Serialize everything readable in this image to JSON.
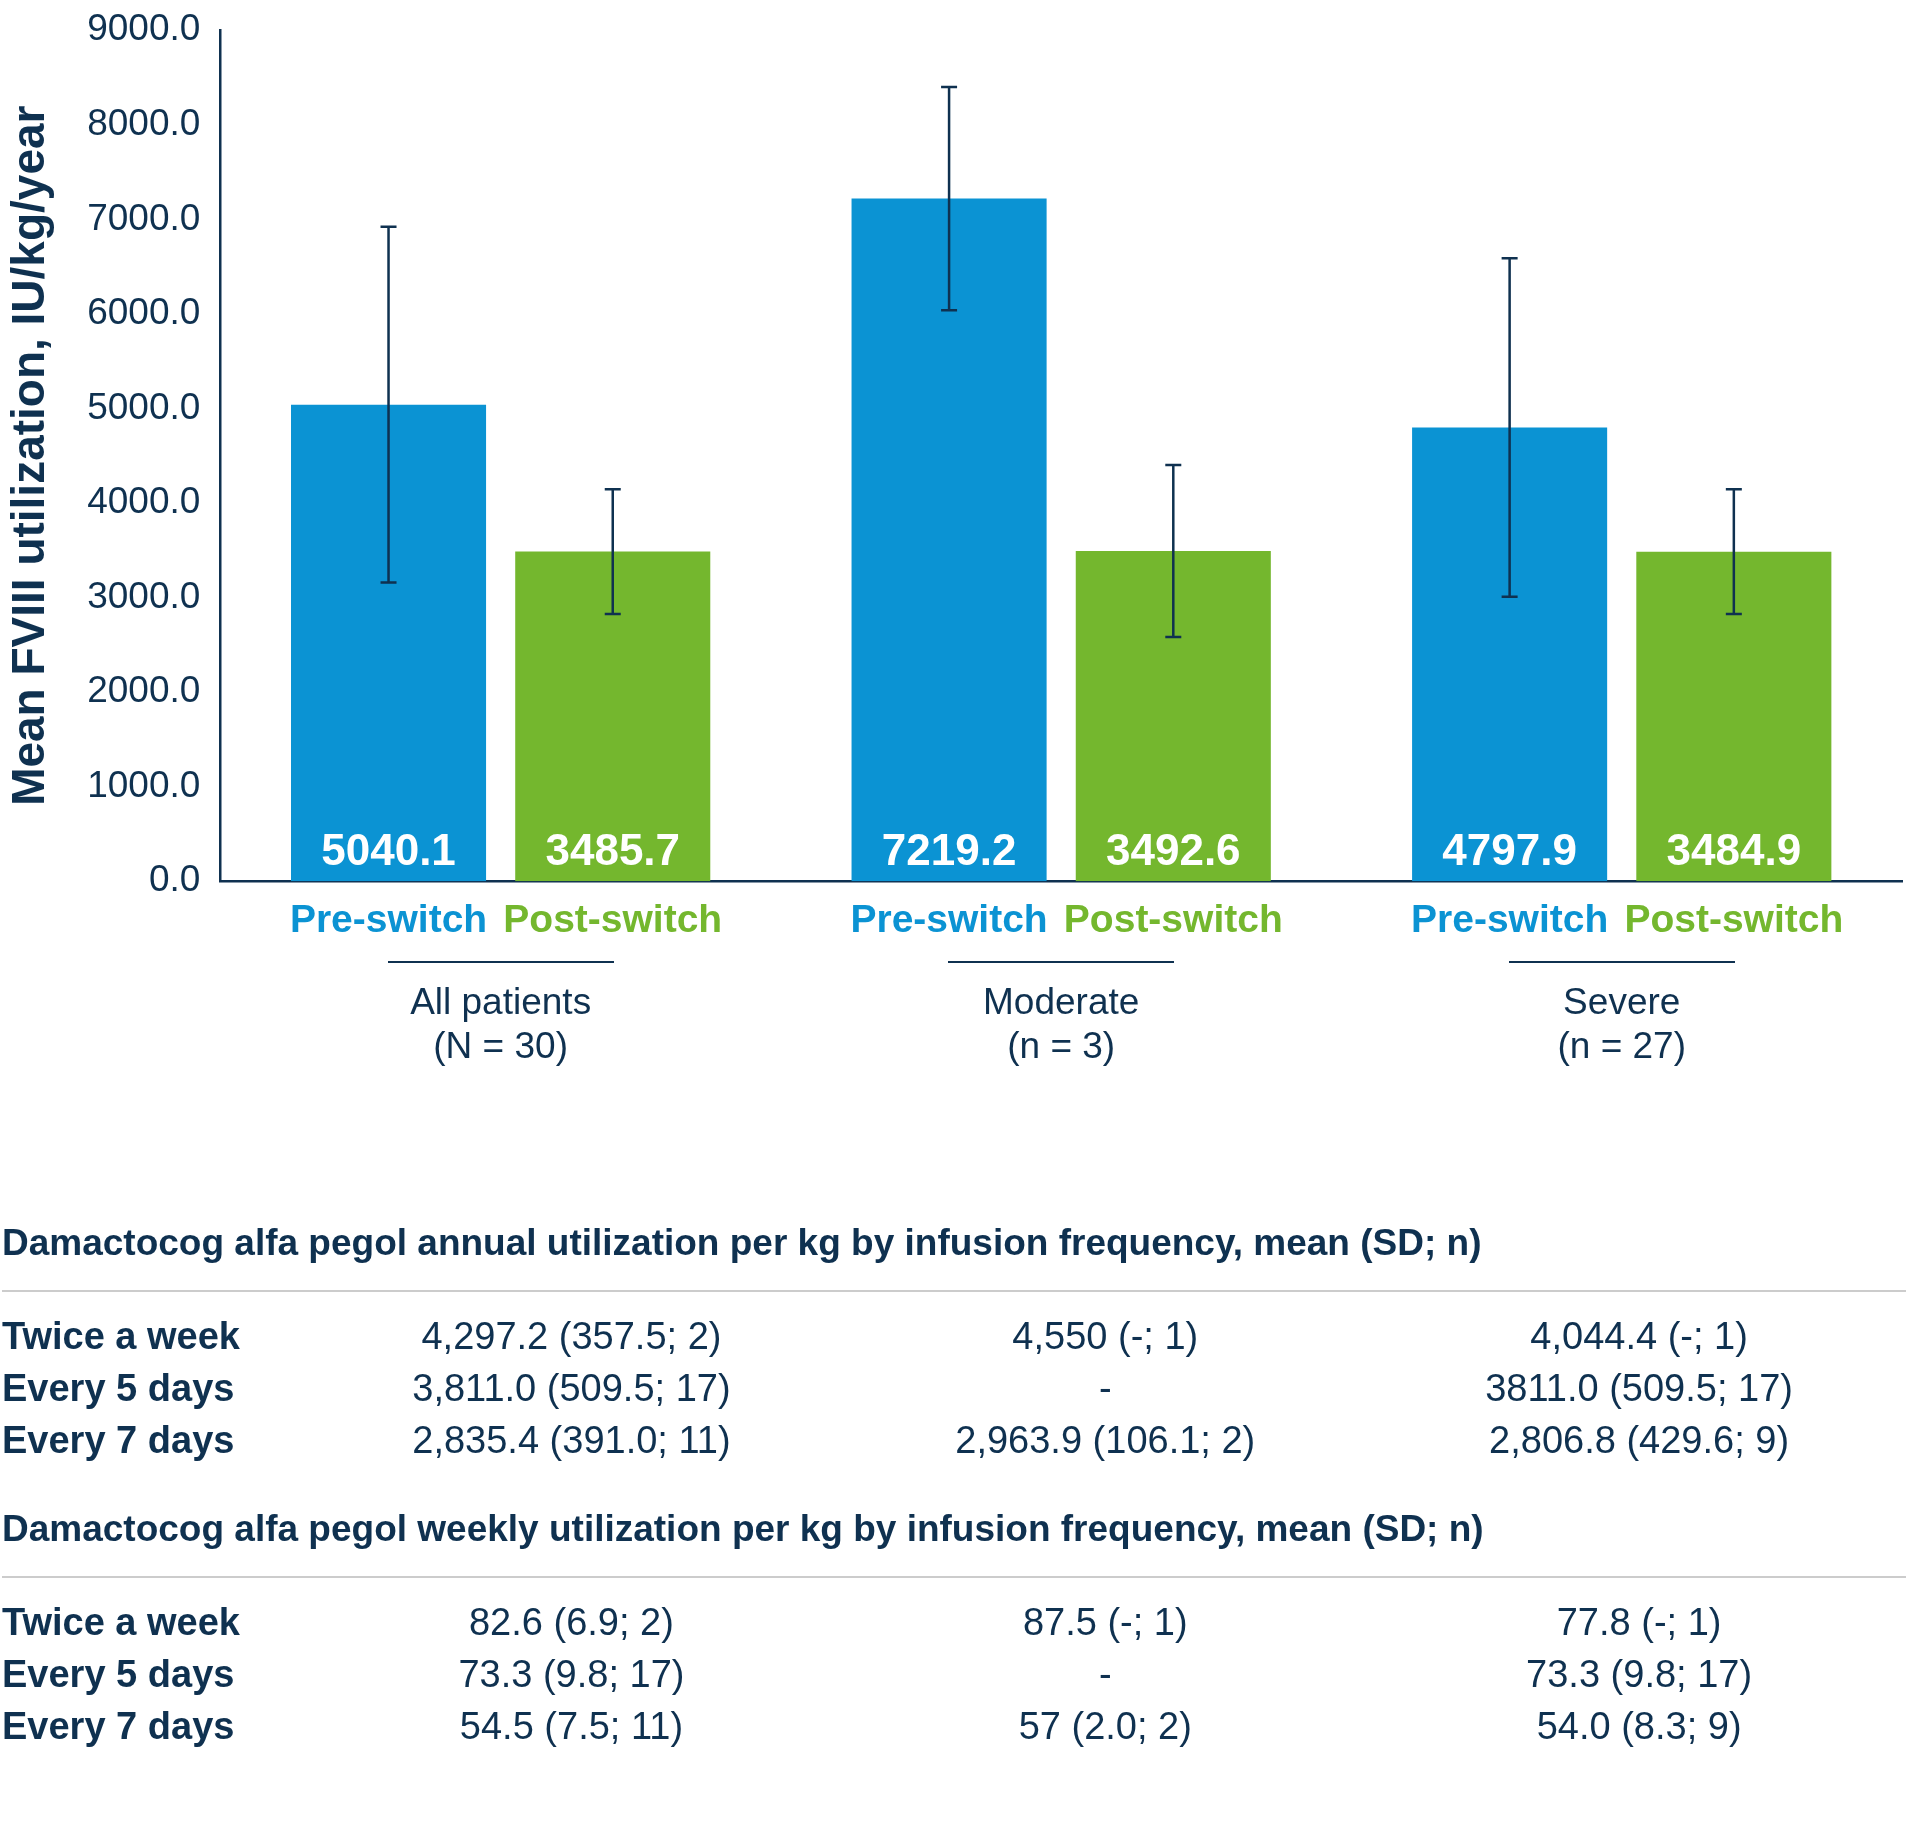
{
  "chart_data": {
    "type": "bar",
    "ylabel": "Mean FVIII utilization, IU/kg/year",
    "categories": [
      "All patients\n(N = 30)",
      "Moderate\n(n = 3)",
      "Severe\n(n = 27)"
    ],
    "series": [
      {
        "name": "Pre-switch",
        "color": "#0b93d3",
        "values": [
          5040.1,
          7219.2,
          4797.9
        ],
        "errors": [
          1880,
          1180,
          1790
        ]
      },
      {
        "name": "Post-switch",
        "color": "#74b72e",
        "values": [
          3485.7,
          3492.6,
          3484.9
        ],
        "errors": [
          660,
          910,
          660
        ]
      }
    ],
    "ylim": [
      0,
      9000
    ],
    "yticks": [
      {
        "value": 0,
        "label": "0.0"
      },
      {
        "value": 1000,
        "label": "1000.0"
      },
      {
        "value": 2000,
        "label": "2000.0"
      },
      {
        "value": 3000,
        "label": "3000.0"
      },
      {
        "value": 4000,
        "label": "4000.0"
      },
      {
        "value": 5000,
        "label": "5000.0"
      },
      {
        "value": 6000,
        "label": "6000.0"
      },
      {
        "value": 7000,
        "label": "7000.0"
      },
      {
        "value": 8000,
        "label": "8000.0"
      },
      {
        "value": 9000,
        "label": "9000.0"
      }
    ],
    "grid": false,
    "legend": false,
    "data_labels": true,
    "annotations": [
      "Damactocog alfa pegol annual utilization per kg by infusion frequency, mean (SD; n)",
      "Twice a week",
      "4,297.2 (357.5; 2)",
      "4,550 (-; 1)",
      "4,044.4 (-; 1)",
      "Every 5 days",
      "3,811.0 (509.5; 17)",
      "-",
      "3811.0 (509.5; 17)",
      "Every 7 days",
      "2,835.4 (391.0; 11)",
      "2,963.9 (106.1; 2)",
      "2,806.8 (429.6; 9)",
      "Damactocog alfa pegol weekly utilization per kg by infusion frequency, mean (SD; n)",
      "Twice a week",
      "82.6 (6.9; 2)",
      "87.5 (-; 1)",
      "77.8 (-; 1)",
      "Every 5 days",
      "73.3 (9.8; 17)",
      "-",
      "73.3 (9.8; 17)",
      "Every 7 days",
      "54.5 (7.5; 11)",
      "57 (2.0; 2)",
      "54.0 (8.3; 9)"
    ]
  }
}
